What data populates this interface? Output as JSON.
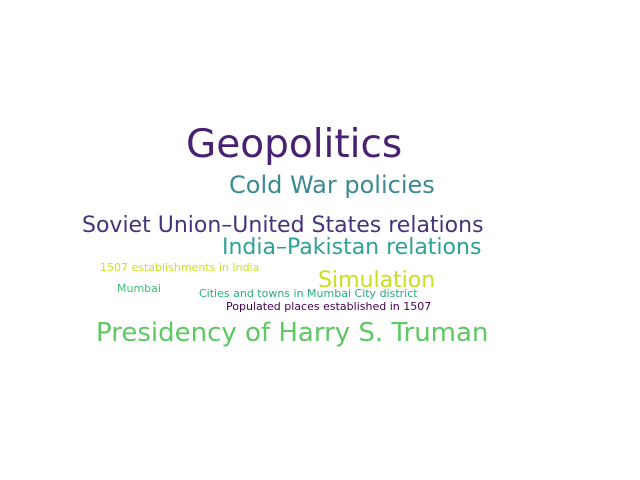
{
  "word_cloud": {
    "words": [
      {
        "id": "geopolitics",
        "text": "Geopolitics",
        "color": "#482173"
      },
      {
        "id": "coldwar",
        "text": "Cold War policies",
        "color": "#3b8a91"
      },
      {
        "id": "soviet",
        "text": "Soviet Union–United States relations",
        "color": "#46337e"
      },
      {
        "id": "india",
        "text": "India–Pakistan relations",
        "color": "#2ea197"
      },
      {
        "id": "1507est",
        "text": "1507 establishments in India",
        "color": "#cde11d"
      },
      {
        "id": "simulation",
        "text": "Simulation",
        "color": "#c8e020"
      },
      {
        "id": "mumbai",
        "text": "Mumbai",
        "color": "#3fbc73"
      },
      {
        "id": "cities",
        "text": "Cities and towns in Mumbai City district",
        "color": "#27ad81"
      },
      {
        "id": "populated",
        "text": "Populated places established in 1507",
        "color": "#440154"
      },
      {
        "id": "truman",
        "text": "Presidency of Harry S. Truman",
        "color": "#5ec962"
      }
    ]
  }
}
